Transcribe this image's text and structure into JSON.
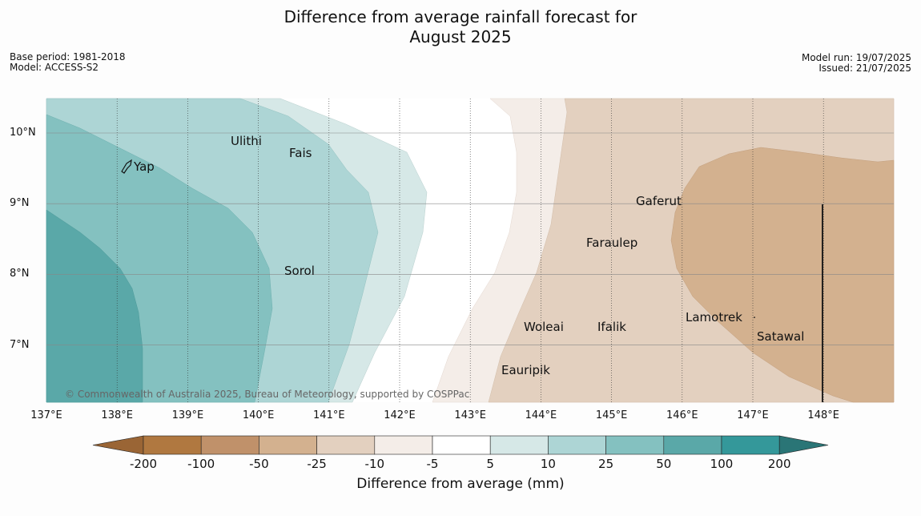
{
  "title_line1": "Difference from average rainfall forecast for",
  "title_line2": "August 2025",
  "meta_left": {
    "base_period": "Base period: 1981-2018",
    "model": "Model: ACCESS-S2"
  },
  "meta_right": {
    "model_run": "Model run: 19/07/2025",
    "issued": "Issued: 21/07/2025"
  },
  "x_ticks": [
    "137°E",
    "138°E",
    "139°E",
    "140°E",
    "141°E",
    "142°E",
    "143°E",
    "144°E",
    "145°E",
    "146°E",
    "147°E",
    "148°E"
  ],
  "y_ticks": [
    "10°N",
    "9°N",
    "8°N",
    "7°N"
  ],
  "places": [
    "Yap",
    "Ulithi",
    "Fais",
    "Sorol",
    "Gaferut",
    "Faraulep",
    "Woleai",
    "Ifalik",
    "Lamotrek",
    "Satawal",
    "Eauripik"
  ],
  "colorbar": {
    "labels": [
      "-200",
      "-100",
      "-50",
      "-25",
      "-10",
      "-5",
      "5",
      "10",
      "25",
      "50",
      "100",
      "200"
    ],
    "colors": [
      "#9a6535",
      "#b07840",
      "#c0916a",
      "#d3b18f",
      "#e3d0bf",
      "#f4ede8",
      "#ffffff",
      "#d6e8e7",
      "#add5d5",
      "#84c1c0",
      "#5aa8a8",
      "#34989a",
      "#2a7576"
    ],
    "title": "Difference from average (mm)"
  },
  "copyright": "© Commonwealth of Australia 2025, Bureau of Meteorology, supported by COSPPac"
}
